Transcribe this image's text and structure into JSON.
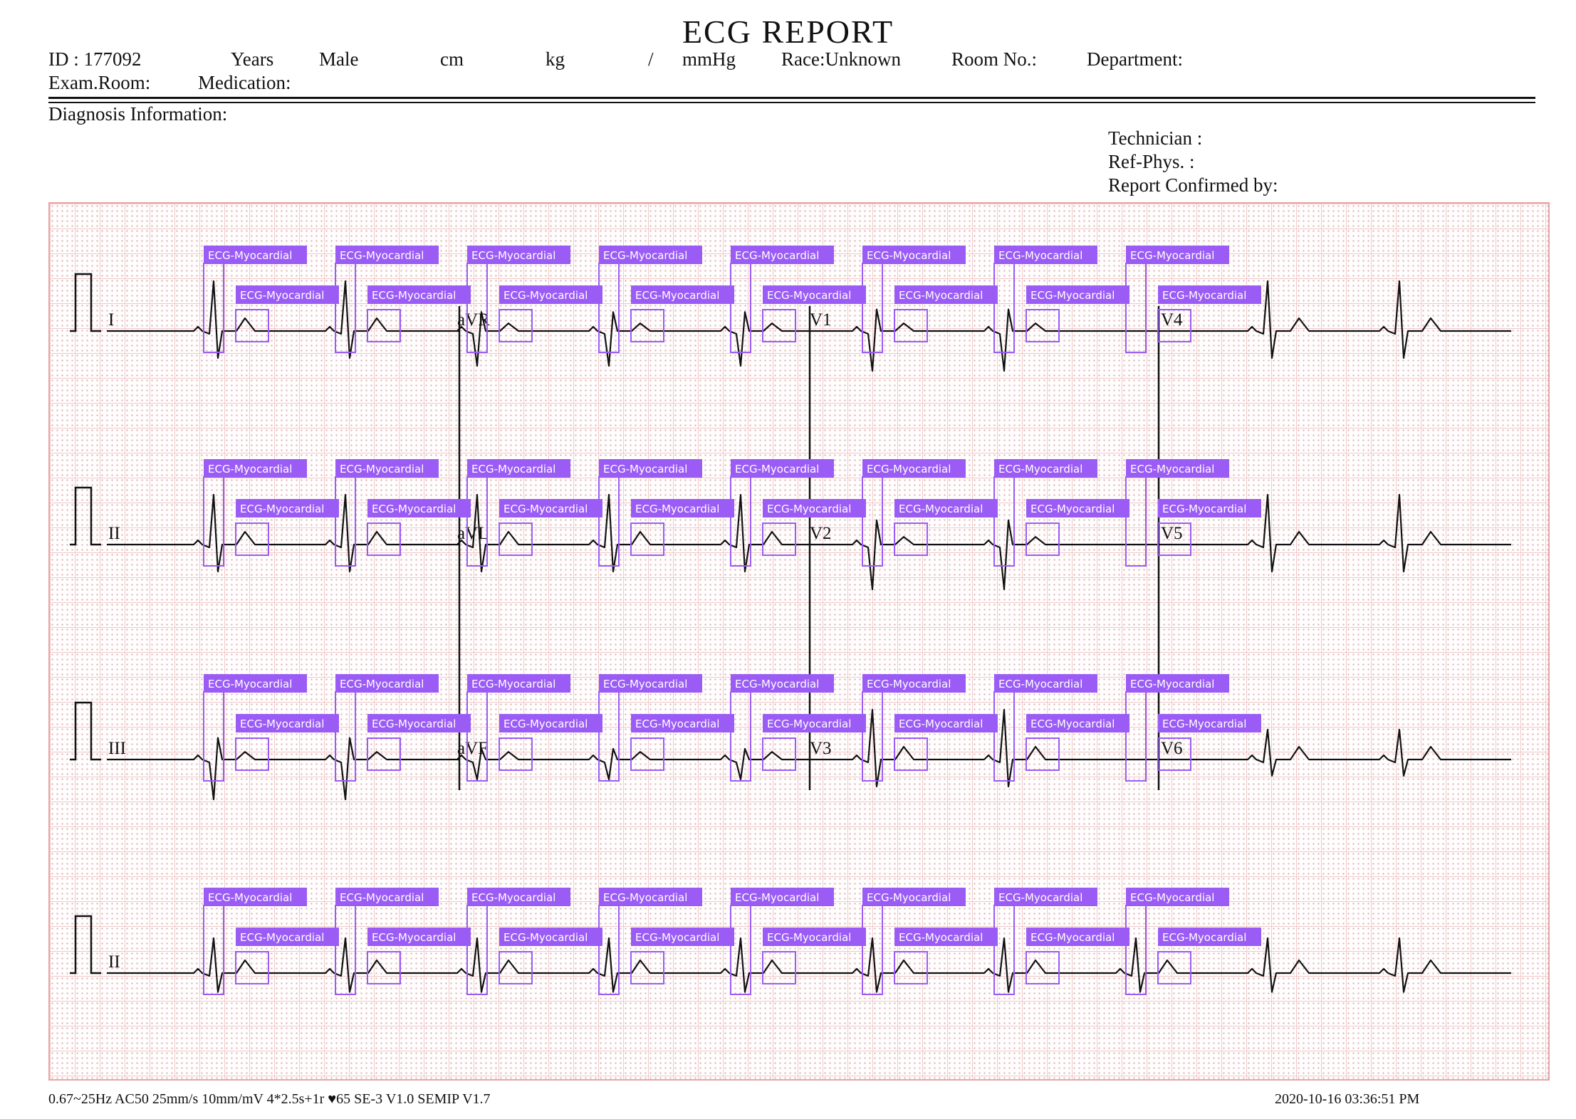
{
  "title": "ECG REPORT",
  "header": {
    "id": "ID : 177092",
    "years": "Years",
    "sex": "Male",
    "cm": "cm",
    "kg": "kg",
    "slash": "/",
    "mmhg": "mmHg",
    "race": "Race:Unknown",
    "room": "Room No.:",
    "department": "Department:",
    "exam_room": "Exam.Room:",
    "medication": "Medication:"
  },
  "diagnosis_label": "Diagnosis Information:",
  "signoff": {
    "technician": "Technician :",
    "ref_phys": "Ref-Phys. :",
    "confirmed": "Report Confirmed by:"
  },
  "leads": [
    "I",
    "aVR",
    "V1",
    "V4",
    "II",
    "aVL",
    "V2",
    "V5",
    "III",
    "aVF",
    "V3",
    "V6",
    "II"
  ],
  "annotation_label": "ECG-Myocardial",
  "colors": {
    "trace": "#111111",
    "annotation": "#9b5cf6",
    "grid": "#f1c9c9",
    "frame": "#e6a6a6"
  },
  "footer": {
    "settings": "0.67~25Hz  AC50  25mm/s  10mm/mV  4*2.5s+1r  ♥65   SE-3  V1.0  SEMIP  V1.7",
    "timestamp": "2020-10-16    03:36:51  PM"
  }
}
